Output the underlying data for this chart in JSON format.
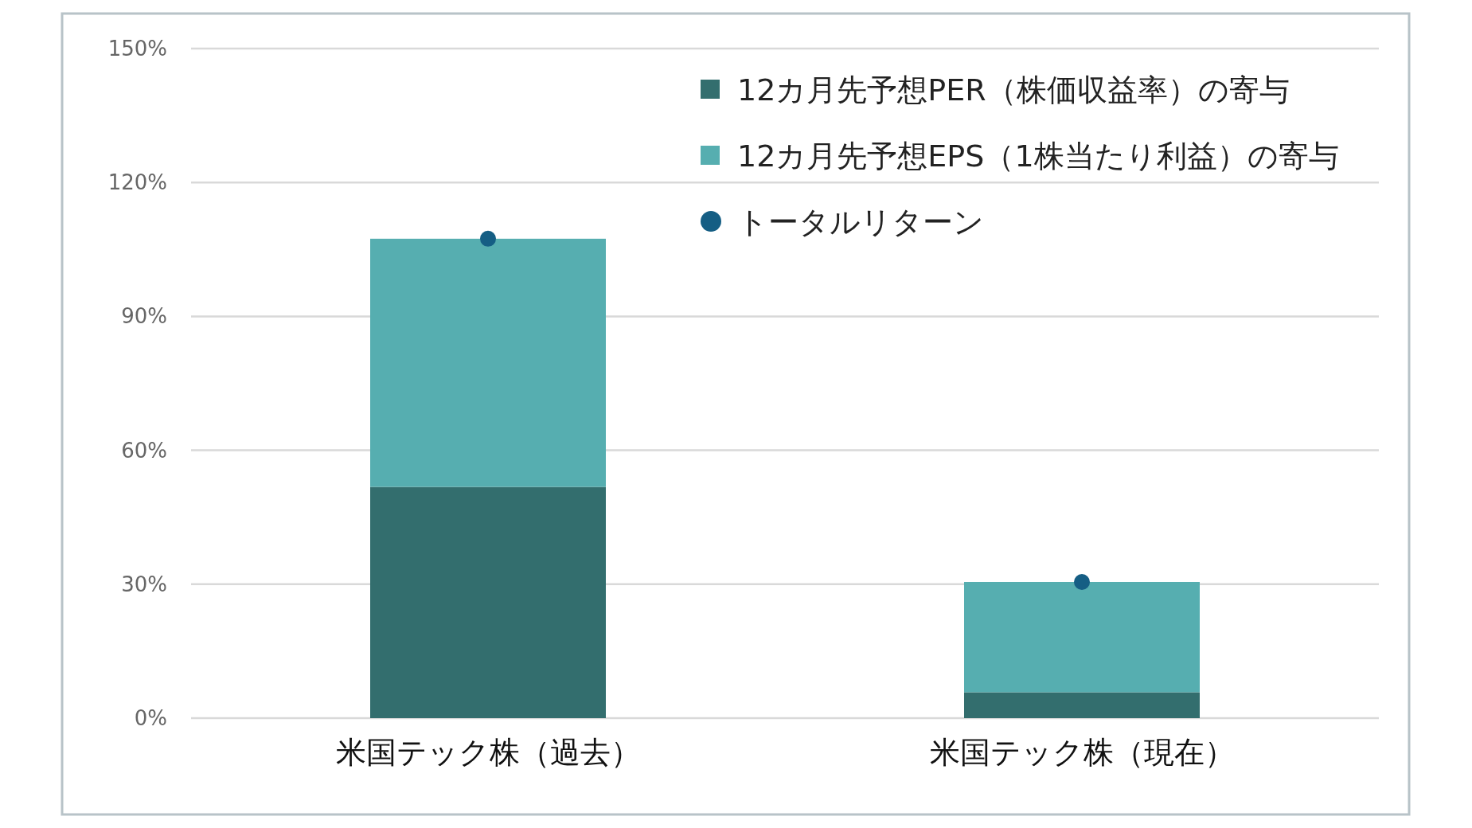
{
  "chart_data": {
    "type": "bar",
    "stacked": true,
    "categories": [
      "米国テック株（過去）",
      "米国テック株（現在）"
    ],
    "series": [
      {
        "name": "12カ月先予想PER（株価収益率）の寄与",
        "color": "#336e6e",
        "values": [
          51.8,
          5.8
        ]
      },
      {
        "name": "12カ月先予想EPS（1株当たり利益）の寄与",
        "color": "#56aeb0",
        "values": [
          55.6,
          24.7
        ]
      },
      {
        "name": "トータルリターン",
        "type": "scatter",
        "color": "#155e84",
        "values": [
          107.4,
          30.5
        ]
      }
    ],
    "ylim": [
      0,
      150
    ],
    "yticks": [
      {
        "value": 0,
        "label": "0%"
      },
      {
        "value": 30,
        "label": "30%"
      },
      {
        "value": 60,
        "label": "60%"
      },
      {
        "value": 90,
        "label": "90%"
      },
      {
        "value": 120,
        "label": "120%"
      },
      {
        "value": 150,
        "label": "150%"
      }
    ],
    "grid": "y",
    "legend": "top right",
    "marker": "circle"
  }
}
